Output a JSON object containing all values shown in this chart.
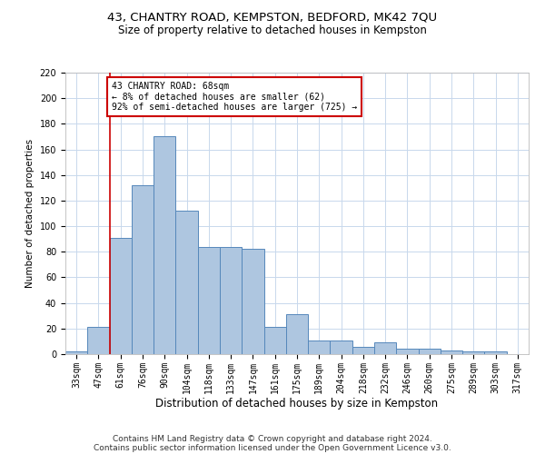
{
  "title1": "43, CHANTRY ROAD, KEMPSTON, BEDFORD, MK42 7QU",
  "title2": "Size of property relative to detached houses in Kempston",
  "xlabel": "Distribution of detached houses by size in Kempston",
  "ylabel": "Number of detached properties",
  "categories": [
    "33sqm",
    "47sqm",
    "61sqm",
    "76sqm",
    "90sqm",
    "104sqm",
    "118sqm",
    "133sqm",
    "147sqm",
    "161sqm",
    "175sqm",
    "189sqm",
    "204sqm",
    "218sqm",
    "232sqm",
    "246sqm",
    "260sqm",
    "275sqm",
    "289sqm",
    "303sqm",
    "317sqm"
  ],
  "values": [
    2,
    21,
    91,
    132,
    170,
    112,
    84,
    84,
    82,
    21,
    31,
    11,
    11,
    6,
    9,
    4,
    4,
    3,
    2,
    2,
    0
  ],
  "bar_color": "#aec6e0",
  "bar_edge_color": "#5588bb",
  "property_line_color": "#cc0000",
  "annotation_text": "43 CHANTRY ROAD: 68sqm\n← 8% of detached houses are smaller (62)\n92% of semi-detached houses are larger (725) →",
  "annotation_box_color": "#cc0000",
  "ylim": [
    0,
    220
  ],
  "yticks": [
    0,
    20,
    40,
    60,
    80,
    100,
    120,
    140,
    160,
    180,
    200,
    220
  ],
  "footer1": "Contains HM Land Registry data © Crown copyright and database right 2024.",
  "footer2": "Contains public sector information licensed under the Open Government Licence v3.0.",
  "bg_color": "#ffffff",
  "grid_color": "#c8d8ec",
  "title1_fontsize": 9.5,
  "title2_fontsize": 8.5,
  "xlabel_fontsize": 8.5,
  "ylabel_fontsize": 7.5,
  "tick_fontsize": 7,
  "footer_fontsize": 6.5,
  "ann_fontsize": 7.0
}
